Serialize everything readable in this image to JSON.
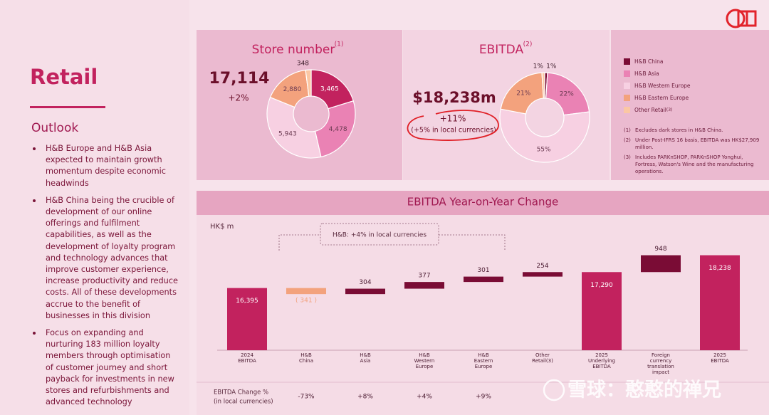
{
  "header": {
    "title": "Retail",
    "subtitle": "Outlook"
  },
  "outlook": [
    "H&B Europe and H&B Asia expected to maintain growth momentum despite economic headwinds",
    "H&B China being the crucible of development of our online offerings and fulfilment capabilities, as well as the development of loyalty program and technology advances that improve customer experience, increase productivity and reduce costs. All of these developments accrue to the benefit of businesses in this division",
    "Focus on expanding and nurturing 183 million loyalty members through optimisation of customer journey and short payback for investments in new stores and refurbishments and advanced technology"
  ],
  "footnotes": [
    {
      "mark": "(1)",
      "text": "Excludes dark stores in H&B China."
    },
    {
      "mark": "(2)",
      "text": "Under Post-IFRS 16 basis, EBITDA was HK$27,909 million."
    },
    {
      "mark": "(3)",
      "text": "Includes PARKnSHOP, PARKnSHOP Yonghui, Fortress, Watson's Wine and the manufacturing operations."
    }
  ],
  "watermark": "雪球：憨憨的禅兄",
  "chart_data": [
    {
      "type": "pie",
      "title": "Store number",
      "title_note": "(1)",
      "total": "17,114",
      "change": "+2%",
      "values": [
        3465,
        4478,
        5943,
        2880,
        348
      ],
      "value_labels": [
        "3,465",
        "4,478",
        "5,943",
        "2,880",
        "348"
      ],
      "colors": [
        "#c2225e",
        "#ea82b4",
        "#f7d0e2",
        "#f3a27d",
        "#fbc7a4"
      ]
    },
    {
      "type": "pie",
      "title": "EBITDA",
      "title_note": "(2)",
      "total": "$18,238m",
      "change": "+11%",
      "change_note": "(+5% in local currencies)",
      "categories": [
        "H&B China",
        "H&B Asia",
        "H&B Western Europe",
        "H&B Eastern Europe",
        "Other Retail"
      ],
      "category_notes": [
        null,
        null,
        null,
        null,
        "(3)"
      ],
      "values": [
        1,
        22,
        55,
        21,
        1
      ],
      "value_labels": [
        "1%",
        "22%",
        "55%",
        "21%",
        "1%"
      ],
      "colors": [
        "#7a0c35",
        "#ea82b4",
        "#f7d0e2",
        "#f3a27d",
        "#fbc7a4"
      ]
    },
    {
      "type": "waterfall",
      "title": "EBITDA Year-on-Year Change",
      "ylabel": "HK$ m",
      "categories": [
        [
          "2024",
          "EBITDA"
        ],
        [
          "H&B",
          "China"
        ],
        [
          "H&B",
          "Asia"
        ],
        [
          "H&B",
          "Western",
          "Europe"
        ],
        [
          "H&B",
          "Eastern",
          "Europe"
        ],
        [
          "Other",
          "Retail(3)"
        ],
        [
          "2025",
          "Underlying",
          "EBITDA"
        ],
        [
          "Foreign",
          "currency",
          "translation",
          "impact"
        ],
        [
          "2025",
          "EBITDA"
        ]
      ],
      "values": [
        16395,
        -341,
        304,
        377,
        301,
        254,
        17290,
        948,
        18238
      ],
      "value_labels": [
        "16,395",
        "( 341 )",
        "304",
        "377",
        "301",
        "254",
        "17,290",
        "948",
        "18,238"
      ],
      "measures": [
        "total",
        "relative",
        "relative",
        "relative",
        "relative",
        "relative",
        "total",
        "relative",
        "total"
      ],
      "colors": {
        "total": "#c2225e",
        "increase": "#7a0c35",
        "decrease": "#f3a27d"
      },
      "ylim": [
        12900,
        19800
      ],
      "bracket_note": "H&B: +4% in local currencies",
      "row_label": [
        "EBITDA Change %",
        "(in local currencies)"
      ],
      "row_values": [
        null,
        "-73%",
        "+8%",
        "+4%",
        "+9%",
        null,
        null,
        null,
        null
      ]
    }
  ]
}
